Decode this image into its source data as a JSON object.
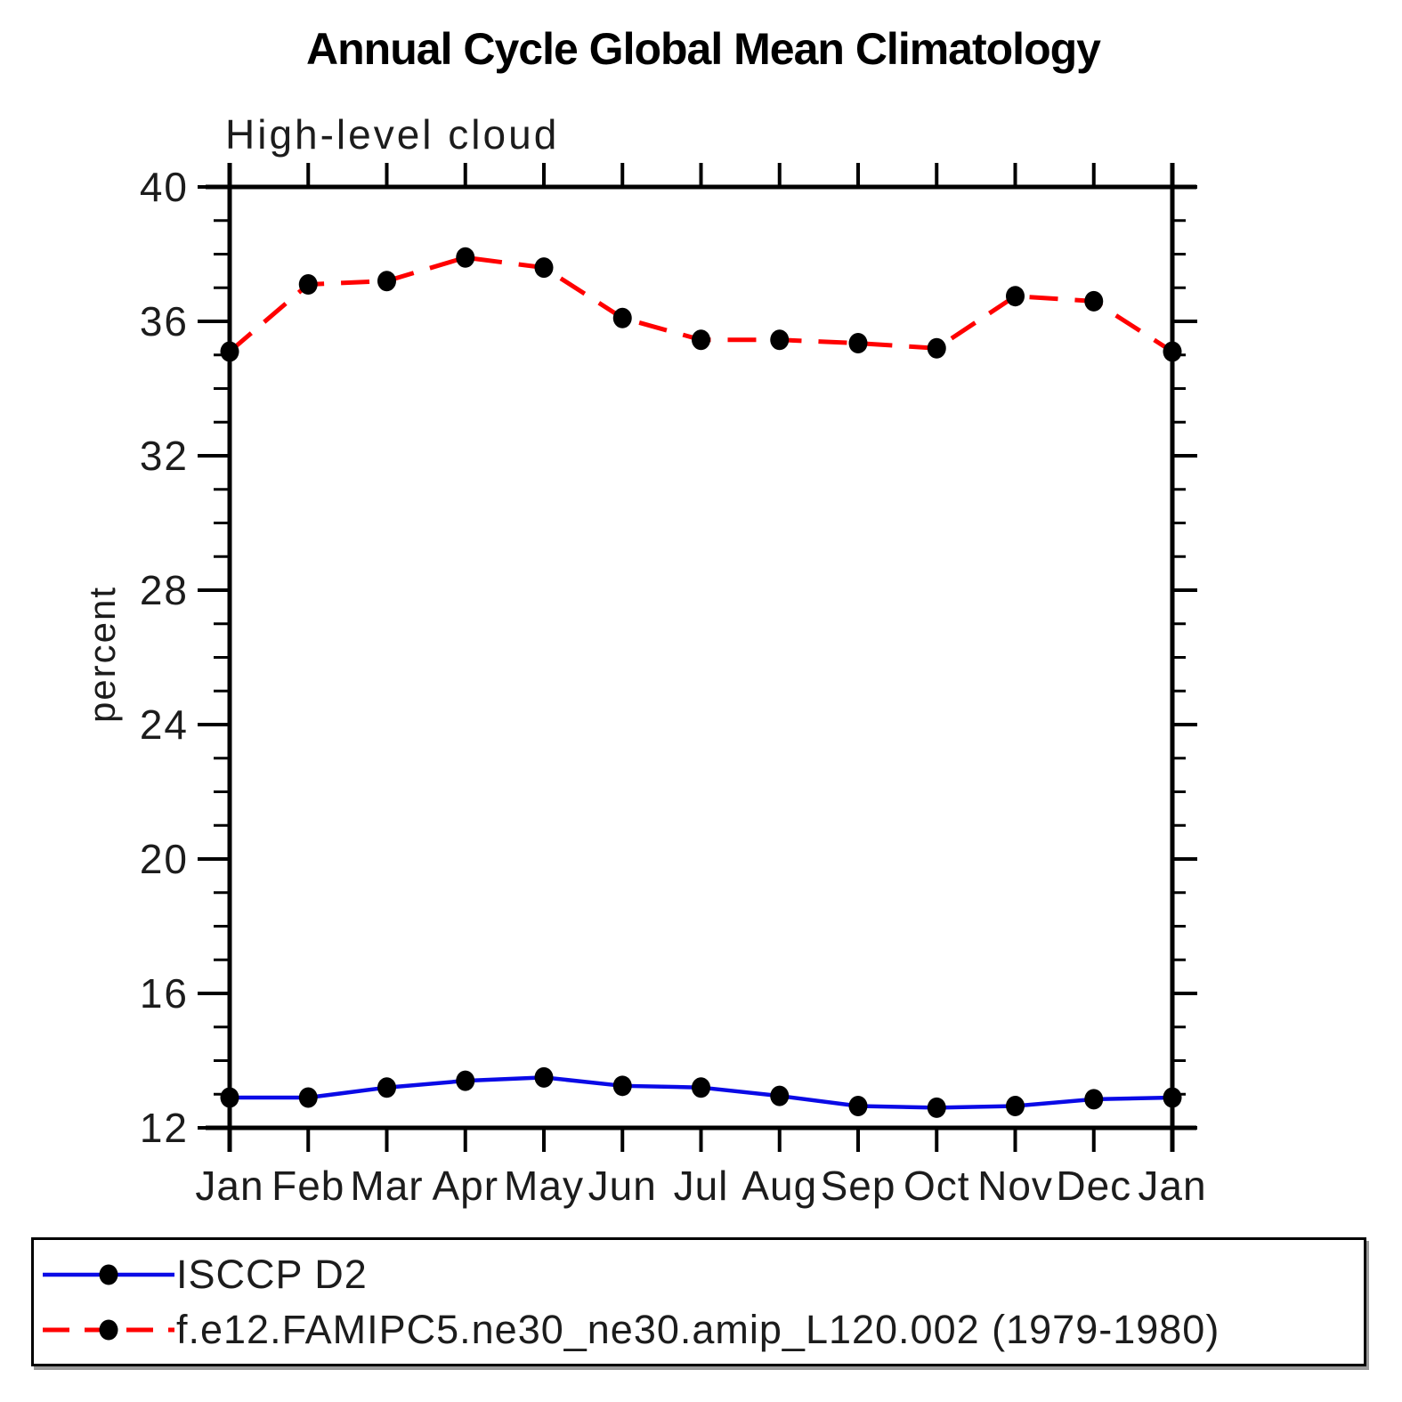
{
  "title": "Annual Cycle Global Mean Climatology",
  "subtitle": "High-level cloud",
  "ylabel": "percent",
  "chart_data": {
    "type": "line",
    "categories": [
      "Jan",
      "Feb",
      "Mar",
      "Apr",
      "May",
      "Jun",
      "Jul",
      "Aug",
      "Sep",
      "Oct",
      "Nov",
      "Dec",
      "Jan"
    ],
    "series": [
      {
        "name": "ISCCP D2",
        "color": "#0a0ae6",
        "line_style": "solid",
        "marker": "filled-circle",
        "marker_color": "#000000",
        "values": [
          12.9,
          12.9,
          13.2,
          13.4,
          13.5,
          13.25,
          13.2,
          12.95,
          12.65,
          12.6,
          12.65,
          12.85,
          12.9
        ]
      },
      {
        "name": "f.e12.FAMIPC5.ne30_ne30.amip_L120.002 (1979-1980)",
        "color": "#ff0000",
        "line_style": "dashed",
        "marker": "filled-circle",
        "marker_color": "#000000",
        "values": [
          35.1,
          37.1,
          37.2,
          37.9,
          37.6,
          36.1,
          35.45,
          35.45,
          35.35,
          35.2,
          36.75,
          36.6,
          35.1
        ]
      }
    ],
    "xlabel": "",
    "ylabel": "percent",
    "ylim": [
      12,
      40
    ],
    "ytick_major_step": 4,
    "ytick_minor_step": 1,
    "grid": "off",
    "legend_position": "bottom"
  },
  "legend": {
    "entries": [
      {
        "label": "ISCCP D2"
      },
      {
        "label": "f.e12.FAMIPC5.ne30_ne30.amip_L120.002 (1979-1980)"
      }
    ]
  }
}
